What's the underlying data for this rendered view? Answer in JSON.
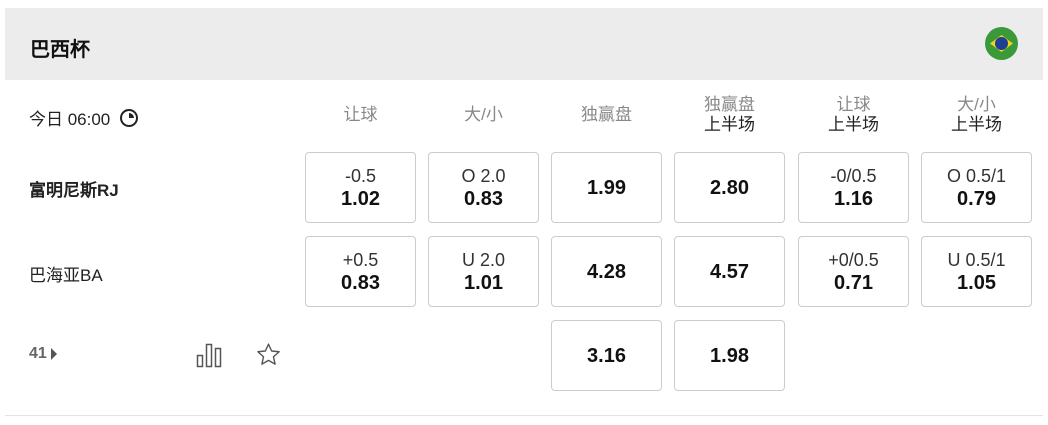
{
  "league": {
    "title": "巴西杯",
    "flag_icon": "brazil-flag-icon"
  },
  "match": {
    "time": "今日 06:00",
    "more_count": "41"
  },
  "columns": [
    {
      "label": "让球",
      "sub": ""
    },
    {
      "label": "大/小",
      "sub": ""
    },
    {
      "label": "独赢盘",
      "sub": ""
    },
    {
      "label": "独赢盘",
      "sub": "上半场"
    },
    {
      "label": "让球",
      "sub": "上半场"
    },
    {
      "label": "大/小",
      "sub": "上半场"
    }
  ],
  "teams": [
    {
      "name": "富明尼斯RJ",
      "bold": true
    },
    {
      "name": "巴海亚BA",
      "bold": false
    }
  ],
  "odds": [
    [
      {
        "line": "-0.5",
        "odd": "1.02"
      },
      {
        "line": "O 2.0",
        "odd": "0.83"
      },
      {
        "line": "",
        "odd": "1.99"
      },
      {
        "line": "",
        "odd": "2.80"
      },
      {
        "line": "-0/0.5",
        "odd": "1.16"
      },
      {
        "line": "O 0.5/1",
        "odd": "0.79"
      }
    ],
    [
      {
        "line": "+0.5",
        "odd": "0.83"
      },
      {
        "line": "U 2.0",
        "odd": "1.01"
      },
      {
        "line": "",
        "odd": "4.28"
      },
      {
        "line": "",
        "odd": "4.57"
      },
      {
        "line": "+0/0.5",
        "odd": "0.71"
      },
      {
        "line": "U 0.5/1",
        "odd": "1.05"
      }
    ],
    [
      null,
      null,
      {
        "line": "",
        "odd": "3.16"
      },
      {
        "line": "",
        "odd": "1.98"
      },
      null,
      null
    ]
  ]
}
